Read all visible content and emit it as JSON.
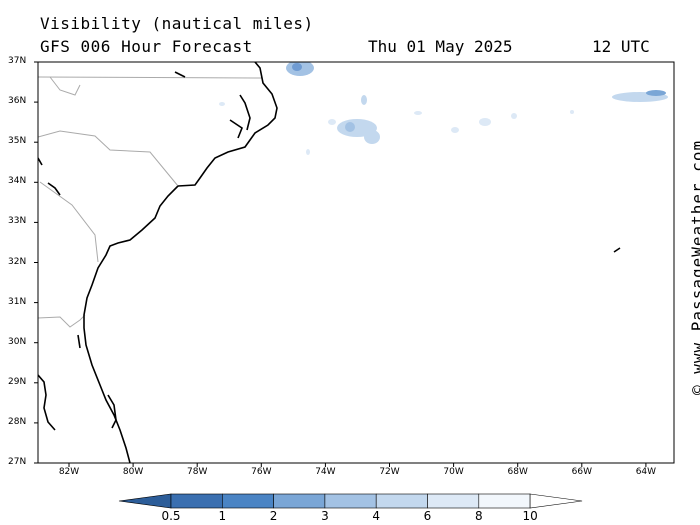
{
  "title": "Visibility (nautical miles)",
  "subtitle": "GFS 006 Hour Forecast",
  "date": "Thu 01 May 2025",
  "time": "12 UTC",
  "watermark": "© www.PassageWeather.com",
  "lat_labels": [
    "37N",
    "36N",
    "35N",
    "34N",
    "33N",
    "32N",
    "31N",
    "30N",
    "29N",
    "28N",
    "27N"
  ],
  "lon_labels": [
    "82W",
    "80W",
    "78W",
    "76W",
    "74W",
    "72W",
    "70W",
    "68W",
    "66W",
    "64W"
  ],
  "colorbar": {
    "labels": [
      "0.5",
      "1",
      "2",
      "3",
      "4",
      "6",
      "8",
      "10"
    ],
    "colors": [
      "#3a6fb0",
      "#4a84c4",
      "#7aa6d6",
      "#a3c2e4",
      "#c3d8ee",
      "#dde9f6",
      "#f2f7fc"
    ]
  },
  "colors": {
    "land_border": "#aaaaaa",
    "coastline": "#000000",
    "fog_light": "#dde9f6",
    "fog_mid": "#a3c2e4",
    "fog_dark": "#6f9bd2"
  }
}
